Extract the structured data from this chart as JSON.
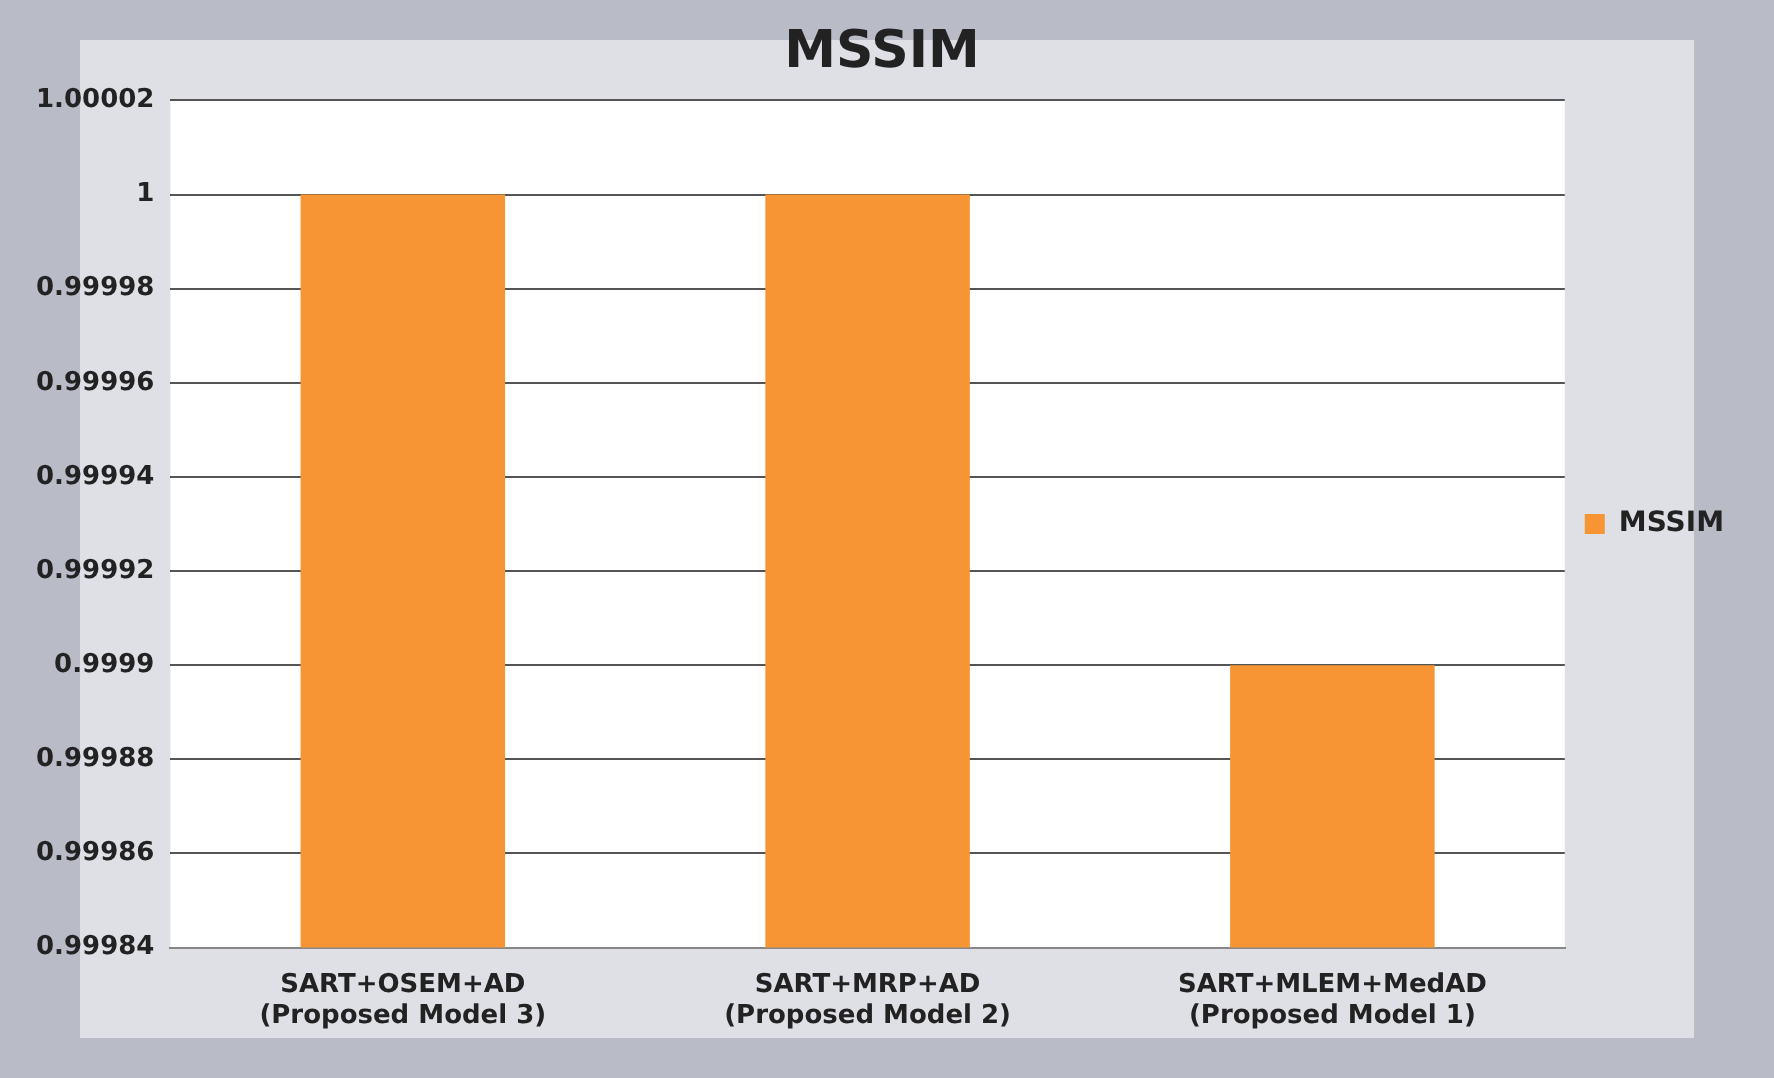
{
  "chart_data": {
    "type": "bar",
    "title": "MSSIM",
    "categories": [
      "SART+OSEM+AD\n(Proposed Model 3)",
      "SART+MRP+AD\n(Proposed Model 2)",
      "SART+MLEM+MedAD\n(Proposed Model 1)"
    ],
    "series": [
      {
        "name": "MSSIM",
        "color": "#f79433",
        "values": [
          1,
          1,
          0.9999
        ]
      }
    ],
    "ylim": [
      0.99984,
      1.00002
    ],
    "yticks": [
      0.99984,
      0.99986,
      0.99988,
      0.9999,
      0.99992,
      0.99994,
      0.99996,
      0.99998,
      1,
      1.00002
    ],
    "grid": "y",
    "legend": "right"
  }
}
